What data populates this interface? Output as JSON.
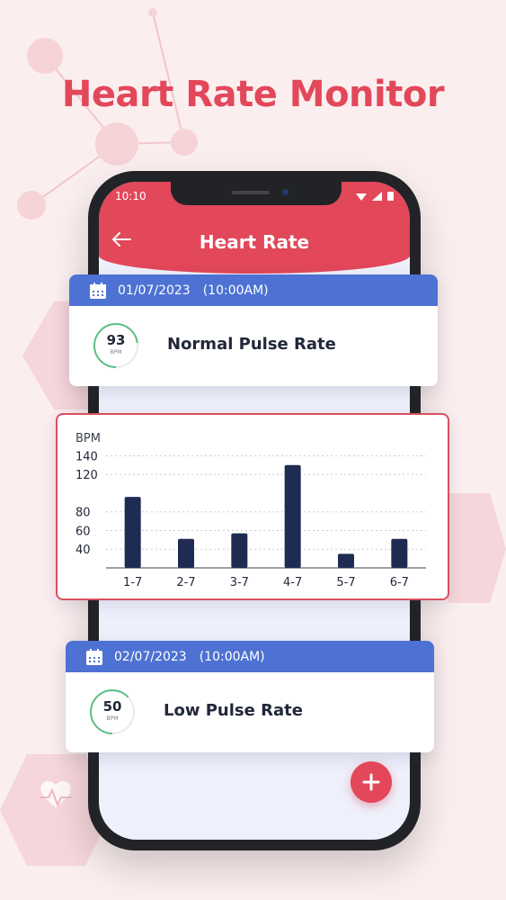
{
  "headline": "Heart Rate Monitor",
  "status_bar": {
    "time": "10:10"
  },
  "app_bar": {
    "title": "Heart Rate",
    "back_icon": "arrow-left-icon"
  },
  "records": [
    {
      "date": "01/07/2023",
      "time": "(10:00AM)",
      "bpm": "93",
      "unit": "BPM",
      "status": "Normal Pulse Rate",
      "icon": "calendar-icon"
    },
    {
      "date": "02/07/2023",
      "time": "(10:00AM)",
      "bpm": "50",
      "unit": "BPM",
      "status": "Low Pulse Rate",
      "icon": "calendar-icon"
    }
  ],
  "fab": {
    "label": "+",
    "icon": "plus-icon"
  },
  "colors": {
    "accent": "#e2475a",
    "header_blue": "#4e72d3",
    "bar": "#1f2b52",
    "ring": "#5bbf85"
  },
  "chart_data": {
    "type": "bar",
    "ylabel": "BPM",
    "categories": [
      "1-7",
      "2-7",
      "3-7",
      "4-7",
      "5-7",
      "6-7"
    ],
    "values": [
      96,
      51,
      57,
      130,
      35,
      51
    ],
    "yticks": [
      40,
      60,
      80,
      120,
      140
    ],
    "ylim": [
      20,
      150
    ],
    "grid": true
  }
}
